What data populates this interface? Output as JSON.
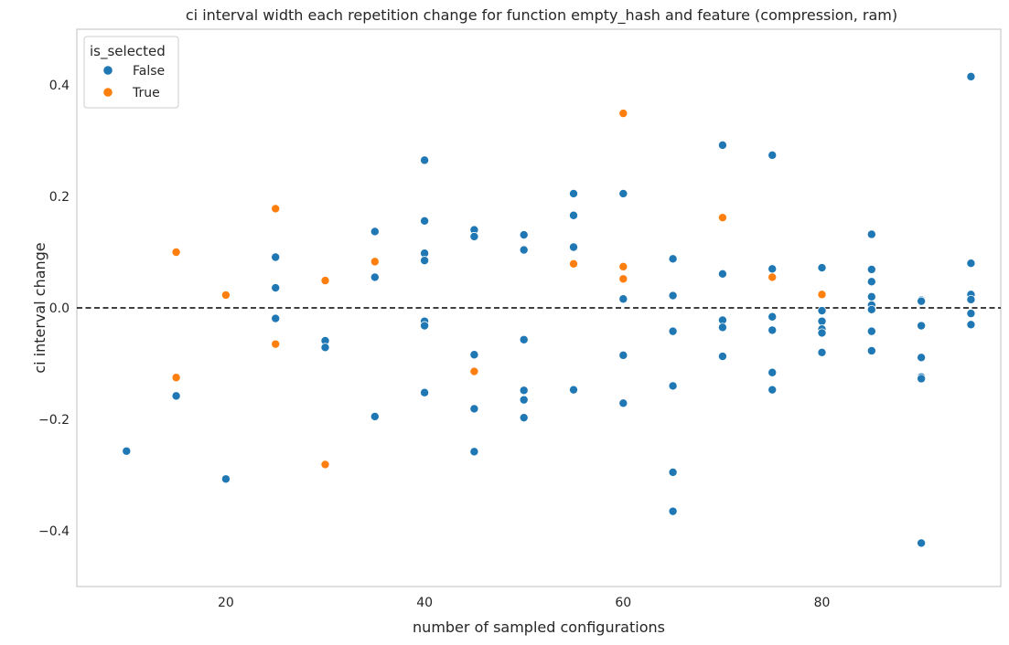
{
  "chart_data": {
    "type": "scatter",
    "title": "ci interval width each repetition change for function empty_hash and feature (compression, ram)",
    "xlabel": "number of sampled configurations",
    "ylabel": "ci interval change",
    "xlim": [
      5,
      98
    ],
    "ylim": [
      -0.5,
      0.5
    ],
    "xticks": [
      20,
      40,
      60,
      80
    ],
    "yticks": [
      -0.4,
      -0.2,
      0.0,
      0.2,
      0.4
    ],
    "xtick_labels": [
      "20",
      "40",
      "60",
      "80"
    ],
    "ytick_labels": [
      "−0.4",
      "−0.2",
      "0.0",
      "0.2",
      "0.4"
    ],
    "reference_line": {
      "y": 0.0,
      "style": "dashed",
      "color": "#000000"
    },
    "grid": false,
    "legend": {
      "title": "is_selected",
      "placement": "top-left",
      "entries": [
        {
          "label": "False",
          "color": "#1f77b4"
        },
        {
          "label": "True",
          "color": "#ff7f0e"
        }
      ]
    },
    "series": [
      {
        "name": "False",
        "color": "#1f77b4",
        "points": [
          [
            10,
            -0.257
          ],
          [
            15,
            -0.158
          ],
          [
            20,
            -0.307
          ],
          [
            25,
            0.091
          ],
          [
            25,
            0.036
          ],
          [
            25,
            -0.019
          ],
          [
            30,
            -0.059
          ],
          [
            30,
            -0.071
          ],
          [
            35,
            0.137
          ],
          [
            35,
            0.055
          ],
          [
            35,
            -0.195
          ],
          [
            40,
            0.265
          ],
          [
            40,
            0.156
          ],
          [
            40,
            0.098
          ],
          [
            40,
            0.085
          ],
          [
            40,
            -0.024
          ],
          [
            40,
            -0.032
          ],
          [
            40,
            -0.152
          ],
          [
            45,
            0.14
          ],
          [
            45,
            0.128
          ],
          [
            45,
            -0.084
          ],
          [
            45,
            -0.181
          ],
          [
            45,
            -0.258
          ],
          [
            50,
            0.131
          ],
          [
            50,
            0.104
          ],
          [
            50,
            -0.057
          ],
          [
            50,
            -0.148
          ],
          [
            50,
            -0.165
          ],
          [
            50,
            -0.197
          ],
          [
            55,
            0.205
          ],
          [
            55,
            0.166
          ],
          [
            55,
            0.109
          ],
          [
            55,
            0.078
          ],
          [
            55,
            -0.147
          ],
          [
            60,
            0.205
          ],
          [
            60,
            0.016
          ],
          [
            60,
            -0.085
          ],
          [
            60,
            -0.171
          ],
          [
            65,
            0.088
          ],
          [
            65,
            0.022
          ],
          [
            65,
            -0.042
          ],
          [
            65,
            -0.14
          ],
          [
            65,
            -0.295
          ],
          [
            65,
            -0.365
          ],
          [
            70,
            0.292
          ],
          [
            70,
            0.061
          ],
          [
            70,
            -0.022
          ],
          [
            70,
            -0.035
          ],
          [
            70,
            -0.087
          ],
          [
            75,
            0.274
          ],
          [
            75,
            0.07
          ],
          [
            75,
            -0.016
          ],
          [
            75,
            -0.04
          ],
          [
            75,
            -0.116
          ],
          [
            75,
            -0.147
          ],
          [
            80,
            0.072
          ],
          [
            80,
            -0.005
          ],
          [
            80,
            -0.024
          ],
          [
            80,
            -0.038
          ],
          [
            80,
            -0.045
          ],
          [
            80,
            -0.08
          ],
          [
            85,
            0.132
          ],
          [
            85,
            0.069
          ],
          [
            85,
            0.047
          ],
          [
            85,
            0.02
          ],
          [
            85,
            0.005
          ],
          [
            85,
            -0.003
          ],
          [
            85,
            -0.042
          ],
          [
            85,
            -0.077
          ],
          [
            90,
            0.014
          ],
          [
            90,
            0.012
          ],
          [
            90,
            -0.032
          ],
          [
            90,
            -0.089
          ],
          [
            90,
            -0.124
          ],
          [
            90,
            -0.127
          ],
          [
            90,
            -0.422
          ],
          [
            95,
            0.415
          ],
          [
            95,
            0.08
          ],
          [
            95,
            0.024
          ],
          [
            95,
            0.015
          ],
          [
            95,
            -0.01
          ],
          [
            95,
            -0.03
          ]
        ]
      },
      {
        "name": "True",
        "color": "#ff7f0e",
        "points": [
          [
            15,
            0.1
          ],
          [
            15,
            -0.125
          ],
          [
            20,
            0.023
          ],
          [
            25,
            0.178
          ],
          [
            25,
            -0.065
          ],
          [
            30,
            0.049
          ],
          [
            30,
            -0.281
          ],
          [
            35,
            0.083
          ],
          [
            45,
            -0.114
          ],
          [
            55,
            0.079
          ],
          [
            60,
            0.349
          ],
          [
            60,
            0.074
          ],
          [
            60,
            0.052
          ],
          [
            70,
            0.162
          ],
          [
            75,
            0.055
          ],
          [
            80,
            0.024
          ]
        ]
      }
    ]
  }
}
